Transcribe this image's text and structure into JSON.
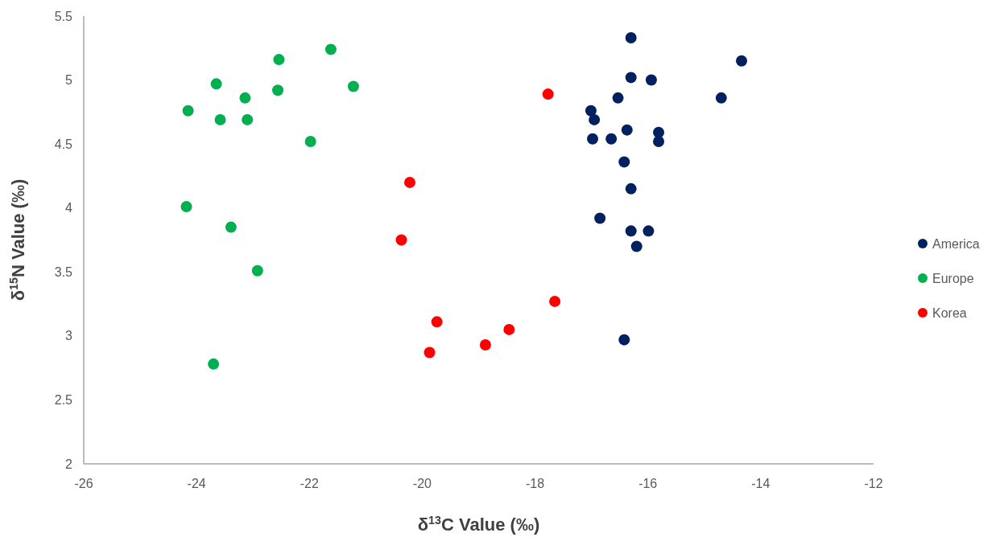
{
  "chart_data": {
    "type": "scatter",
    "xlabel": "δ$^{13}$C Value (‰)",
    "ylabel": "δ$^{15}$N Value (‰)",
    "xlim": [
      -26,
      -12
    ],
    "xticks": [
      -26,
      -24,
      -22,
      -20,
      -18,
      -16,
      -14,
      -12
    ],
    "ylim": [
      2,
      5.5
    ],
    "yticks": [
      2,
      2.5,
      3,
      3.5,
      4,
      4.5,
      5,
      5.5
    ],
    "grid": false,
    "legend": "right",
    "marker": "circle",
    "series": [
      {
        "name": "America",
        "color": "#002060",
        "x": [
          -16.3,
          -14.34,
          -16.3,
          -15.94,
          -16.53,
          -14.7,
          -17.01,
          -16.95,
          -16.37,
          -16.98,
          -16.65,
          -15.81,
          -15.81,
          -16.42,
          -16.3,
          -16.85,
          -16.3,
          -15.99,
          -16.2,
          -16.42
        ],
        "values": [
          5.33,
          5.15,
          5.02,
          5.0,
          4.86,
          4.86,
          4.76,
          4.69,
          4.61,
          4.54,
          4.54,
          4.59,
          4.52,
          4.36,
          4.15,
          3.92,
          3.82,
          3.82,
          3.7,
          2.97
        ]
      },
      {
        "name": "Europe",
        "color": "#00b050",
        "x": [
          -21.62,
          -22.54,
          -23.65,
          -21.22,
          -22.56,
          -23.14,
          -24.15,
          -23.58,
          -23.1,
          -21.98,
          -24.18,
          -23.39,
          -22.92,
          -23.7
        ],
        "values": [
          5.24,
          5.16,
          4.97,
          4.95,
          4.92,
          4.86,
          4.76,
          4.69,
          4.69,
          4.52,
          4.01,
          3.85,
          3.51,
          2.78
        ]
      },
      {
        "name": "Korea",
        "color": "#ff0000",
        "x": [
          -17.77,
          -20.22,
          -20.37,
          -17.65,
          -19.74,
          -18.46,
          -18.88,
          -19.87
        ],
        "values": [
          4.89,
          4.2,
          3.75,
          3.27,
          3.11,
          3.05,
          2.93,
          2.87
        ]
      }
    ]
  }
}
